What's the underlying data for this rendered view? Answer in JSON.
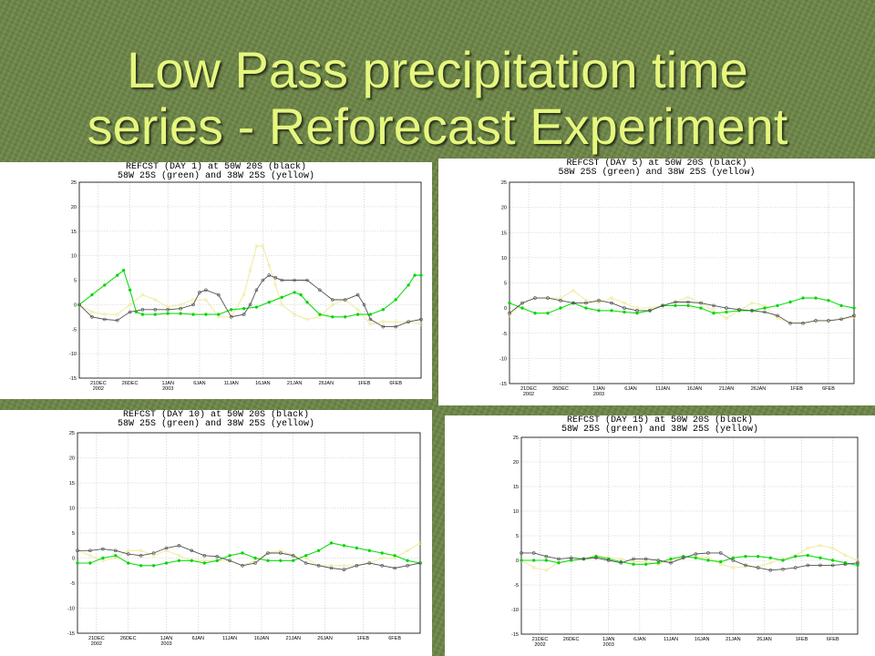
{
  "slide": {
    "title_line1": "Low Pass precipitation time",
    "title_line2": "series - Reforecast Experiment",
    "title_color": "#e6f77f"
  },
  "colors": {
    "black": "#444444",
    "green": "#11dd11",
    "yellow": "#f3eea0"
  },
  "chart_data": [
    {
      "type": "line",
      "title": "REFCST (DAY 1) at 50W 20S (black)",
      "subtitle": "58W 25S (green) and 38W 25S (yellow)",
      "ylim": [
        -15,
        25
      ],
      "yticks": [
        25,
        20,
        15,
        10,
        5,
        0,
        -5,
        -10,
        -15
      ],
      "xlim": [
        0,
        54
      ],
      "xticks": [
        {
          "x": 3,
          "label": "21DEC",
          "sub": "2002"
        },
        {
          "x": 8,
          "label": "26DEC",
          "sub": ""
        },
        {
          "x": 14,
          "label": "1JAN",
          "sub": "2003"
        },
        {
          "x": 19,
          "label": "6JAN",
          "sub": ""
        },
        {
          "x": 24,
          "label": "11JAN",
          "sub": ""
        },
        {
          "x": 29,
          "label": "16JAN",
          "sub": ""
        },
        {
          "x": 34,
          "label": "21JAN",
          "sub": ""
        },
        {
          "x": 39,
          "label": "26JAN",
          "sub": ""
        },
        {
          "x": 45,
          "label": "1FEB",
          "sub": ""
        },
        {
          "x": 50,
          "label": "6FEB",
          "sub": ""
        }
      ],
      "grid": true,
      "series": [
        {
          "name": "black",
          "x": [
            0,
            2,
            4,
            6,
            8,
            10,
            12,
            14,
            16,
            18,
            19,
            20,
            22,
            24,
            26,
            27,
            28,
            29,
            30,
            31,
            32,
            34,
            36,
            38,
            40,
            42,
            44,
            45,
            46,
            48,
            50,
            52,
            54
          ],
          "values": [
            0,
            -2.5,
            -3,
            -3.2,
            -1.5,
            -1,
            -1,
            -1,
            -0.8,
            0,
            2.5,
            3,
            2,
            -2.5,
            -2,
            0,
            3,
            5,
            6,
            5.5,
            5,
            5,
            5,
            3,
            1,
            1,
            2,
            0,
            -3,
            -4.5,
            -4.5,
            -3.5,
            -3
          ]
        },
        {
          "name": "green",
          "x": [
            0,
            2,
            4,
            6,
            7,
            8,
            9,
            10,
            12,
            14,
            16,
            18,
            20,
            22,
            24,
            26,
            28,
            30,
            32,
            34,
            35,
            36,
            38,
            40,
            42,
            44,
            46,
            48,
            50,
            52,
            53,
            54
          ],
          "values": [
            0,
            2,
            4,
            6,
            7,
            3,
            -1.5,
            -2,
            -2,
            -1.8,
            -1.8,
            -2,
            -2,
            -2,
            -1,
            -0.8,
            -0.5,
            0.5,
            1.5,
            2.5,
            2,
            0.5,
            -2,
            -2.5,
            -2.5,
            -2,
            -2,
            -1,
            1,
            4,
            6,
            6
          ]
        },
        {
          "name": "yellow",
          "x": [
            0,
            2,
            4,
            6,
            8,
            10,
            12,
            14,
            16,
            18,
            20,
            22,
            24,
            26,
            27,
            28,
            29,
            30,
            31,
            32,
            34,
            36,
            38,
            40,
            42,
            44,
            46,
            48,
            50,
            52,
            54
          ],
          "values": [
            0,
            -1.5,
            -2,
            -2,
            0,
            2,
            1,
            -0.5,
            0,
            1,
            1,
            -2.5,
            -2.5,
            2,
            7,
            12,
            12,
            8,
            4,
            0,
            -2,
            -3,
            -2.5,
            0,
            1,
            -1,
            -4,
            -3.5,
            -3.5,
            -3.5,
            -4
          ]
        }
      ]
    },
    {
      "type": "line",
      "title": "REFCST (DAY 5) at 50W 20S (black)",
      "subtitle": "58W 25S (green) and 38W 25S (yellow)",
      "ylim": [
        -15,
        25
      ],
      "yticks": [
        25,
        20,
        15,
        10,
        5,
        0,
        -5,
        -10,
        -15
      ],
      "xlim": [
        0,
        54
      ],
      "xticks": [
        {
          "x": 3,
          "label": "21DEC",
          "sub": "2002"
        },
        {
          "x": 8,
          "label": "26DEC",
          "sub": ""
        },
        {
          "x": 14,
          "label": "1JAN",
          "sub": "2003"
        },
        {
          "x": 19,
          "label": "6JAN",
          "sub": ""
        },
        {
          "x": 24,
          "label": "11JAN",
          "sub": ""
        },
        {
          "x": 29,
          "label": "16JAN",
          "sub": ""
        },
        {
          "x": 34,
          "label": "21JAN",
          "sub": ""
        },
        {
          "x": 39,
          "label": "26JAN",
          "sub": ""
        },
        {
          "x": 45,
          "label": "1FEB",
          "sub": ""
        },
        {
          "x": 50,
          "label": "6FEB",
          "sub": ""
        }
      ],
      "grid": true,
      "series": [
        {
          "name": "black",
          "x": [
            0,
            2,
            4,
            6,
            8,
            10,
            12,
            14,
            16,
            18,
            20,
            22,
            24,
            26,
            28,
            30,
            32,
            34,
            36,
            38,
            40,
            42,
            44,
            46,
            48,
            50,
            52,
            54
          ],
          "values": [
            -1,
            1,
            2,
            2,
            1.5,
            1,
            1,
            1.5,
            1,
            0,
            -0.5,
            -0.5,
            0.5,
            1.2,
            1.2,
            1,
            0.5,
            0,
            -0.3,
            -0.5,
            -0.8,
            -1.5,
            -3,
            -3,
            -2.5,
            -2.5,
            -2.2,
            -1.5
          ]
        },
        {
          "name": "green",
          "x": [
            0,
            2,
            4,
            6,
            8,
            10,
            12,
            14,
            16,
            18,
            20,
            22,
            24,
            26,
            28,
            30,
            32,
            34,
            36,
            38,
            40,
            42,
            44,
            46,
            48,
            50,
            52,
            54
          ],
          "values": [
            1,
            0,
            -1,
            -1,
            0,
            1,
            0,
            -0.5,
            -0.5,
            -0.8,
            -1,
            -0.5,
            0.5,
            0.5,
            0.5,
            0,
            -1,
            -0.8,
            -0.5,
            -0.5,
            0,
            0.5,
            1.2,
            2,
            2,
            1.5,
            0.5,
            0
          ]
        },
        {
          "name": "yellow",
          "x": [
            0,
            2,
            4,
            6,
            8,
            10,
            12,
            14,
            16,
            18,
            20,
            22,
            24,
            26,
            28,
            30,
            32,
            34,
            36,
            38,
            40,
            42,
            44,
            46,
            48,
            50,
            52,
            54
          ],
          "values": [
            -1.5,
            1,
            2,
            2,
            2,
            3.5,
            1.5,
            1,
            2,
            1,
            0,
            0,
            0.5,
            1.2,
            2.2,
            1,
            -0.5,
            -2,
            -0.5,
            1,
            0.5,
            -2,
            -3,
            -3,
            -2.5,
            -2.5,
            -2.2,
            -1.8
          ]
        }
      ]
    },
    {
      "type": "line",
      "title": "REFCST (DAY 10) at 50W 20S (black)",
      "subtitle": "58W 25S (green) and 38W 25S (yellow)",
      "ylim": [
        -15,
        25
      ],
      "yticks": [
        25,
        20,
        15,
        10,
        5,
        0,
        -5,
        -10,
        -15
      ],
      "xlim": [
        0,
        54
      ],
      "xticks": [
        {
          "x": 3,
          "label": "21DEC",
          "sub": "2002"
        },
        {
          "x": 8,
          "label": "26DEC",
          "sub": ""
        },
        {
          "x": 14,
          "label": "1JAN",
          "sub": "2003"
        },
        {
          "x": 19,
          "label": "6JAN",
          "sub": ""
        },
        {
          "x": 24,
          "label": "11JAN",
          "sub": ""
        },
        {
          "x": 29,
          "label": "16JAN",
          "sub": ""
        },
        {
          "x": 34,
          "label": "21JAN",
          "sub": ""
        },
        {
          "x": 39,
          "label": "26JAN",
          "sub": ""
        },
        {
          "x": 45,
          "label": "1FEB",
          "sub": ""
        },
        {
          "x": 50,
          "label": "6FEB",
          "sub": ""
        }
      ],
      "grid": true,
      "series": [
        {
          "name": "black",
          "x": [
            0,
            2,
            4,
            6,
            8,
            10,
            12,
            14,
            16,
            18,
            20,
            22,
            24,
            26,
            28,
            30,
            32,
            34,
            36,
            38,
            40,
            42,
            44,
            46,
            48,
            50,
            52,
            54
          ],
          "values": [
            1.5,
            1.5,
            1.8,
            1.5,
            0.8,
            0.5,
            1,
            2,
            2.5,
            1.5,
            0.5,
            0.3,
            -0.5,
            -1.5,
            -1,
            1,
            1,
            0.5,
            -1,
            -1.5,
            -2,
            -2.3,
            -1.5,
            -1,
            -1.5,
            -2,
            -1.5,
            -1
          ]
        },
        {
          "name": "green",
          "x": [
            0,
            2,
            4,
            6,
            8,
            10,
            12,
            14,
            16,
            18,
            20,
            22,
            24,
            26,
            28,
            30,
            32,
            34,
            36,
            38,
            40,
            42,
            44,
            46,
            48,
            50,
            52,
            54
          ],
          "values": [
            -1,
            -1,
            0,
            0.5,
            -1,
            -1.5,
            -1.5,
            -1,
            -0.5,
            -0.5,
            -1,
            -0.5,
            0.5,
            1,
            0,
            -0.5,
            -0.5,
            -0.5,
            0.5,
            1.5,
            3,
            2.5,
            2,
            1.5,
            1,
            0.5,
            -0.5,
            -1
          ]
        },
        {
          "name": "yellow",
          "x": [
            0,
            2,
            4,
            6,
            8,
            10,
            12,
            14,
            16,
            18,
            20,
            22,
            24,
            26,
            28,
            30,
            32,
            34,
            36,
            38,
            40,
            42,
            44,
            46,
            48,
            50,
            52,
            54
          ],
          "values": [
            1.5,
            0.5,
            -0.5,
            0,
            1.5,
            1.5,
            0.5,
            1.5,
            0.5,
            -0.5,
            -0.5,
            -0.5,
            -0.5,
            -1.5,
            -0.5,
            1,
            1.5,
            0.5,
            0,
            -1.5,
            -1.5,
            -1.5,
            -1.5,
            -1,
            0,
            0,
            1.5,
            3
          ]
        }
      ]
    },
    {
      "type": "line",
      "title": "REFCST (DAY 15) at 50W 20S (black)",
      "subtitle": "58W 25S (green) and 38W 25S (yellow)",
      "ylim": [
        -15,
        25
      ],
      "yticks": [
        25,
        20,
        15,
        10,
        5,
        0,
        -5,
        -10,
        -15
      ],
      "xlim": [
        0,
        54
      ],
      "xticks": [
        {
          "x": 3,
          "label": "21DEC",
          "sub": "2002"
        },
        {
          "x": 8,
          "label": "26DEC",
          "sub": ""
        },
        {
          "x": 14,
          "label": "1JAN",
          "sub": "2003"
        },
        {
          "x": 19,
          "label": "6JAN",
          "sub": ""
        },
        {
          "x": 24,
          "label": "11JAN",
          "sub": ""
        },
        {
          "x": 29,
          "label": "16JAN",
          "sub": ""
        },
        {
          "x": 34,
          "label": "21JAN",
          "sub": ""
        },
        {
          "x": 39,
          "label": "26JAN",
          "sub": ""
        },
        {
          "x": 45,
          "label": "1FEB",
          "sub": ""
        },
        {
          "x": 50,
          "label": "6FEB",
          "sub": ""
        }
      ],
      "grid": true,
      "series": [
        {
          "name": "black",
          "x": [
            0,
            2,
            4,
            6,
            8,
            10,
            12,
            14,
            16,
            18,
            20,
            22,
            24,
            26,
            28,
            30,
            32,
            34,
            36,
            38,
            40,
            42,
            44,
            46,
            48,
            50,
            52,
            54
          ],
          "values": [
            1.5,
            1.5,
            0.8,
            0.3,
            0.5,
            0.3,
            0.5,
            0,
            -0.5,
            0.3,
            0.3,
            0,
            -0.5,
            0.5,
            1.3,
            1.5,
            1.5,
            0,
            -1,
            -1.5,
            -2,
            -1.8,
            -1.5,
            -1,
            -1,
            -1,
            -0.8,
            -0.5
          ]
        },
        {
          "name": "green",
          "x": [
            0,
            2,
            4,
            6,
            8,
            10,
            12,
            14,
            16,
            18,
            20,
            22,
            24,
            26,
            28,
            30,
            32,
            34,
            36,
            38,
            40,
            42,
            44,
            46,
            48,
            50,
            52,
            54
          ],
          "values": [
            0,
            0,
            0,
            -0.5,
            0,
            0.3,
            0.8,
            0.3,
            -0.3,
            -0.8,
            -0.8,
            -0.5,
            0.3,
            0.8,
            0.5,
            0,
            -0.3,
            0.5,
            0.8,
            0.8,
            0.5,
            0,
            0.8,
            1,
            0.5,
            0,
            -0.5,
            -1
          ]
        },
        {
          "name": "yellow",
          "x": [
            0,
            2,
            4,
            6,
            8,
            10,
            12,
            14,
            16,
            18,
            20,
            22,
            24,
            26,
            28,
            30,
            32,
            34,
            36,
            38,
            40,
            42,
            44,
            46,
            48,
            50,
            52,
            54
          ],
          "values": [
            0,
            -1.5,
            -2,
            -0.5,
            0,
            0.3,
            1,
            0.5,
            0.3,
            -0.3,
            -0.3,
            -0.8,
            0,
            0.5,
            0.8,
            0.5,
            -0.8,
            -1.5,
            -1.3,
            -1.3,
            -0.5,
            0.3,
            1,
            2.5,
            3,
            2.5,
            1,
            0
          ]
        }
      ]
    }
  ]
}
